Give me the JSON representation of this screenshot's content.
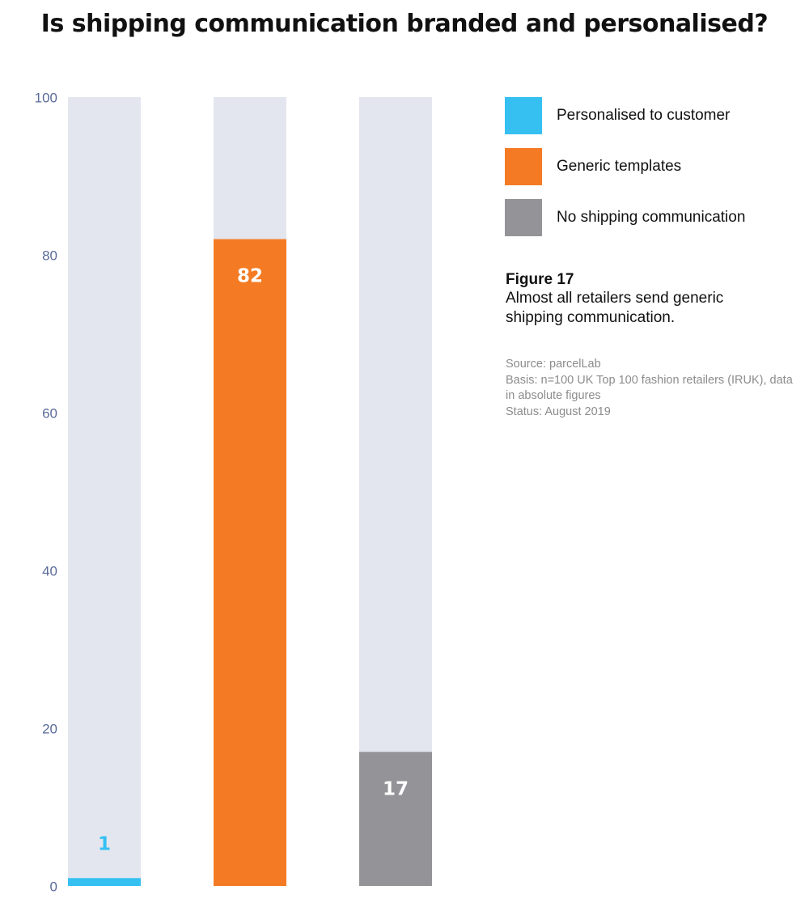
{
  "title": "Is shipping communication branded and personalised?",
  "colors": {
    "background_bar": "#e3e6ef",
    "personalised": "#35c0f1",
    "generic": "#f47b24",
    "none": "#949498",
    "axis_text": "#5a6b9a"
  },
  "chart_data": {
    "type": "bar",
    "categories": [
      "Personalised to customer",
      "Generic templates",
      "No shipping communication"
    ],
    "values": [
      1,
      82,
      17
    ],
    "ylim": [
      0,
      100
    ],
    "yticks": [
      "0",
      "20",
      "40",
      "60",
      "80",
      "100"
    ],
    "data_labels": [
      "1",
      "82",
      "17"
    ],
    "title": "Is shipping communication branded and personalised?",
    "xlabel": "",
    "ylabel": ""
  },
  "legend": {
    "items": [
      {
        "label": "Personalised to customer",
        "color": "#35c0f1"
      },
      {
        "label": "Generic templates",
        "color": "#f47b24"
      },
      {
        "label": "No shipping communication",
        "color": "#949498"
      }
    ]
  },
  "caption": {
    "figure": "Figure 17",
    "text": "Almost all retailers send generic shipping communication."
  },
  "notes": {
    "source": "Source: parcelLab",
    "basis": "Basis: n=100 UK Top 100 fashion retailers (IRUK), data in absolute figures",
    "status": "Status: August 2019"
  }
}
